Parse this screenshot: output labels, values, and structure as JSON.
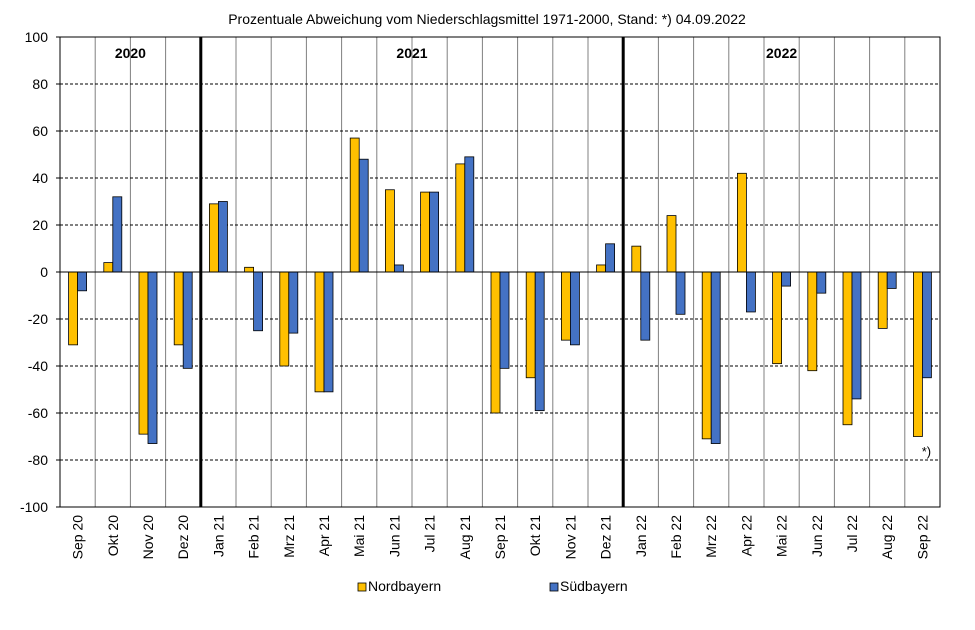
{
  "chart_data": {
    "type": "bar",
    "title": "Prozentuale  Abweichung  vom Niederschlagsmittel  1971-2000, Stand: *) 04.09.2022",
    "xlabel": "",
    "ylabel": "",
    "ylim": [
      -100,
      100
    ],
    "yticks": [
      100,
      80,
      60,
      40,
      20,
      0,
      -20,
      -40,
      -60,
      -80,
      -100
    ],
    "grid": true,
    "legend_position": "bottom",
    "categories": [
      "Sep 20",
      "Okt 20",
      "Nov 20",
      "Dez 20",
      "Jan 21",
      "Feb 21",
      "Mrz 21",
      "Apr 21",
      "Mai 21",
      "Jun 21",
      "Jul 21",
      "Aug 21",
      "Sep 21",
      "Okt 21",
      "Nov 21",
      "Dez 21",
      "Jan 22",
      "Feb 22",
      "Mrz 22",
      "Apr 22",
      "Mai 22",
      "Jun 22",
      "Jul 22",
      "Aug 22",
      "Sep 22"
    ],
    "series": [
      {
        "name": "Nordbayern",
        "color": "#FFC000",
        "values": [
          -31,
          4,
          -69,
          -31,
          29,
          2,
          -40,
          -51,
          57,
          35,
          34,
          46,
          -60,
          -45,
          -29,
          3,
          11,
          24,
          -71,
          42,
          -39,
          -42,
          -65,
          -24,
          -70
        ]
      },
      {
        "name": "Südbayern",
        "color": "#4472C4",
        "values": [
          -8,
          32,
          -73,
          -41,
          30,
          -25,
          -26,
          -51,
          48,
          3,
          34,
          49,
          -41,
          -59,
          -31,
          12,
          -29,
          -18,
          -73,
          -17,
          -6,
          -9,
          -54,
          -7,
          -45
        ]
      }
    ],
    "year_sections": [
      {
        "label": "2020",
        "start_index": 0,
        "end_index": 3
      },
      {
        "label": "2021",
        "start_index": 4,
        "end_index": 15
      },
      {
        "label": "2022",
        "start_index": 16,
        "end_index": 24
      }
    ],
    "annotation": {
      "text": "*)",
      "category_index": 24
    }
  }
}
